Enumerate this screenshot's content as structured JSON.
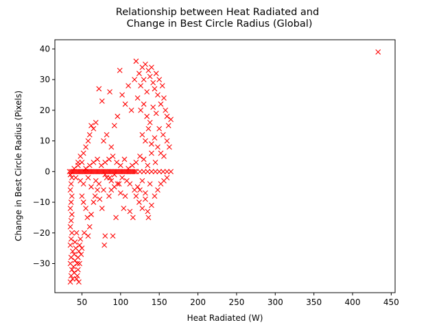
{
  "chart_data": {
    "type": "scatter",
    "title_line1": "Relationship between Heat Radiated and",
    "title_line2": "Change in Best Circle Radius (Global)",
    "xlabel": "Heat Radiated (W)",
    "ylabel": "Change in Best Circle Radius (Pixels)",
    "xlim": [
      15,
      455
    ],
    "ylim": [
      -39.5,
      43
    ],
    "xticks": [
      50,
      100,
      150,
      200,
      250,
      300,
      350,
      400,
      450
    ],
    "yticks": [
      -30,
      -20,
      -10,
      0,
      10,
      20,
      30,
      40
    ],
    "marker": "x",
    "color": "#ff0000",
    "grid": false,
    "legend": "none",
    "series": [
      {
        "points": [
          [
            433,
            39
          ],
          [
            35,
            -36
          ],
          [
            36,
            -34
          ],
          [
            37,
            -32
          ],
          [
            35,
            -30
          ],
          [
            36,
            -28
          ],
          [
            38,
            -26
          ],
          [
            35,
            -24
          ],
          [
            36,
            -22
          ],
          [
            37,
            -20
          ],
          [
            35,
            -18
          ],
          [
            36,
            -16
          ],
          [
            37,
            -14
          ],
          [
            35,
            -12
          ],
          [
            36,
            -10
          ],
          [
            37,
            -8
          ],
          [
            35,
            -6
          ],
          [
            36,
            -4
          ],
          [
            37,
            -2
          ],
          [
            35,
            -1
          ],
          [
            38,
            -35
          ],
          [
            40,
            -33
          ],
          [
            39,
            -31
          ],
          [
            41,
            -29
          ],
          [
            40,
            -27
          ],
          [
            42,
            -25
          ],
          [
            41,
            -23
          ],
          [
            43,
            -35
          ],
          [
            44,
            -30
          ],
          [
            45,
            -28
          ],
          [
            46,
            -26
          ],
          [
            47,
            -24
          ],
          [
            45,
            -32
          ],
          [
            48,
            -22
          ],
          [
            44,
            -34
          ],
          [
            46,
            -36
          ],
          [
            49,
            -27
          ],
          [
            43,
            -20
          ],
          [
            47,
            -30
          ],
          [
            50,
            -25
          ],
          [
            34,
            0
          ],
          [
            36,
            0
          ],
          [
            38,
            0
          ],
          [
            40,
            0
          ],
          [
            42,
            0
          ],
          [
            44,
            0
          ],
          [
            46,
            0
          ],
          [
            48,
            0
          ],
          [
            50,
            0
          ],
          [
            52,
            0
          ],
          [
            54,
            0
          ],
          [
            56,
            0
          ],
          [
            58,
            0
          ],
          [
            60,
            0
          ],
          [
            62,
            0
          ],
          [
            64,
            0
          ],
          [
            66,
            0
          ],
          [
            68,
            0
          ],
          [
            70,
            0
          ],
          [
            72,
            0
          ],
          [
            74,
            0
          ],
          [
            76,
            0
          ],
          [
            78,
            0
          ],
          [
            80,
            0
          ],
          [
            82,
            0
          ],
          [
            84,
            0
          ],
          [
            86,
            0
          ],
          [
            88,
            0
          ],
          [
            90,
            0
          ],
          [
            92,
            0
          ],
          [
            94,
            0
          ],
          [
            96,
            0
          ],
          [
            98,
            0
          ],
          [
            100,
            0
          ],
          [
            102,
            0
          ],
          [
            104,
            0
          ],
          [
            106,
            0
          ],
          [
            108,
            0
          ],
          [
            110,
            0
          ],
          [
            112,
            0
          ],
          [
            114,
            0
          ],
          [
            116,
            0
          ],
          [
            118,
            0
          ],
          [
            120,
            0
          ],
          [
            125,
            0
          ],
          [
            130,
            0
          ],
          [
            135,
            0
          ],
          [
            140,
            0
          ],
          [
            145,
            0
          ],
          [
            150,
            0
          ],
          [
            155,
            0
          ],
          [
            160,
            0
          ],
          [
            165,
            0
          ],
          [
            40,
            1
          ],
          [
            45,
            2
          ],
          [
            50,
            3
          ],
          [
            55,
            1
          ],
          [
            60,
            2
          ],
          [
            65,
            3
          ],
          [
            70,
            4
          ],
          [
            75,
            2
          ],
          [
            80,
            3
          ],
          [
            85,
            4
          ],
          [
            90,
            5
          ],
          [
            95,
            3
          ],
          [
            100,
            2
          ],
          [
            105,
            4
          ],
          [
            110,
            1
          ],
          [
            115,
            2
          ],
          [
            120,
            3
          ],
          [
            125,
            5
          ],
          [
            130,
            4
          ],
          [
            135,
            2
          ],
          [
            140,
            6
          ],
          [
            145,
            3
          ],
          [
            42,
            -2
          ],
          [
            48,
            -3
          ],
          [
            52,
            -4
          ],
          [
            58,
            -2
          ],
          [
            62,
            -5
          ],
          [
            68,
            -3
          ],
          [
            72,
            -4
          ],
          [
            78,
            -6
          ],
          [
            82,
            -2
          ],
          [
            88,
            -3
          ],
          [
            92,
            -5
          ],
          [
            98,
            -4
          ],
          [
            102,
            -2
          ],
          [
            108,
            -3
          ],
          [
            112,
            -4
          ],
          [
            118,
            -6
          ],
          [
            122,
            -5
          ],
          [
            128,
            -3
          ],
          [
            132,
            -7
          ],
          [
            138,
            -4
          ],
          [
            50,
            -8
          ],
          [
            52,
            -10
          ],
          [
            55,
            -12
          ],
          [
            57,
            -15
          ],
          [
            60,
            -18
          ],
          [
            53,
            -20
          ],
          [
            58,
            -21
          ],
          [
            62,
            -14
          ],
          [
            65,
            -10
          ],
          [
            67,
            -8
          ],
          [
            70,
            -6
          ],
          [
            73,
            -9
          ],
          [
            76,
            -12
          ],
          [
            79,
            -24
          ],
          [
            80,
            -21
          ],
          [
            85,
            -8
          ],
          [
            88,
            -6
          ],
          [
            90,
            -21
          ],
          [
            94,
            -15
          ],
          [
            104,
            -12
          ],
          [
            45,
            3
          ],
          [
            48,
            5
          ],
          [
            52,
            6
          ],
          [
            55,
            8
          ],
          [
            58,
            10
          ],
          [
            60,
            12
          ],
          [
            62,
            15
          ],
          [
            65,
            14
          ],
          [
            68,
            16
          ],
          [
            72,
            27
          ],
          [
            76,
            23
          ],
          [
            78,
            10
          ],
          [
            82,
            12
          ],
          [
            86,
            26
          ],
          [
            88,
            8
          ],
          [
            92,
            15
          ],
          [
            96,
            18
          ],
          [
            99,
            33
          ],
          [
            102,
            25
          ],
          [
            106,
            22
          ],
          [
            110,
            28
          ],
          [
            114,
            20
          ],
          [
            118,
            30
          ],
          [
            120,
            36
          ],
          [
            122,
            24
          ],
          [
            124,
            32
          ],
          [
            126,
            28
          ],
          [
            128,
            34
          ],
          [
            130,
            30
          ],
          [
            132,
            35
          ],
          [
            134,
            26
          ],
          [
            136,
            33
          ],
          [
            138,
            31
          ],
          [
            140,
            34
          ],
          [
            142,
            29
          ],
          [
            144,
            27
          ],
          [
            146,
            32
          ],
          [
            148,
            25
          ],
          [
            150,
            30
          ],
          [
            152,
            22
          ],
          [
            154,
            28
          ],
          [
            156,
            24
          ],
          [
            158,
            20
          ],
          [
            160,
            18
          ],
          [
            162,
            15
          ],
          [
            165,
            17
          ],
          [
            126,
            20
          ],
          [
            130,
            22
          ],
          [
            134,
            18
          ],
          [
            138,
            16
          ],
          [
            142,
            21
          ],
          [
            146,
            19
          ],
          [
            150,
            14
          ],
          [
            155,
            12
          ],
          [
            160,
            10
          ],
          [
            163,
            8
          ],
          [
            128,
            12
          ],
          [
            132,
            10
          ],
          [
            136,
            14
          ],
          [
            140,
            9
          ],
          [
            144,
            11
          ],
          [
            148,
            8
          ],
          [
            152,
            6
          ],
          [
            156,
            5
          ],
          [
            120,
            -8
          ],
          [
            124,
            -10
          ],
          [
            128,
            -12
          ],
          [
            132,
            -9
          ],
          [
            136,
            -15
          ],
          [
            140,
            -11
          ],
          [
            144,
            -8
          ],
          [
            148,
            -6
          ],
          [
            152,
            -4
          ],
          [
            156,
            -3
          ],
          [
            160,
            -2
          ],
          [
            116,
            -15
          ],
          [
            112,
            -13
          ],
          [
            106,
            -8
          ],
          [
            100,
            -7
          ],
          [
            96,
            -4
          ],
          [
            92,
            -1
          ],
          [
            86,
            -2
          ],
          [
            80,
            -1
          ],
          [
            125,
            -6
          ],
          [
            135,
            -13
          ]
        ]
      }
    ]
  }
}
